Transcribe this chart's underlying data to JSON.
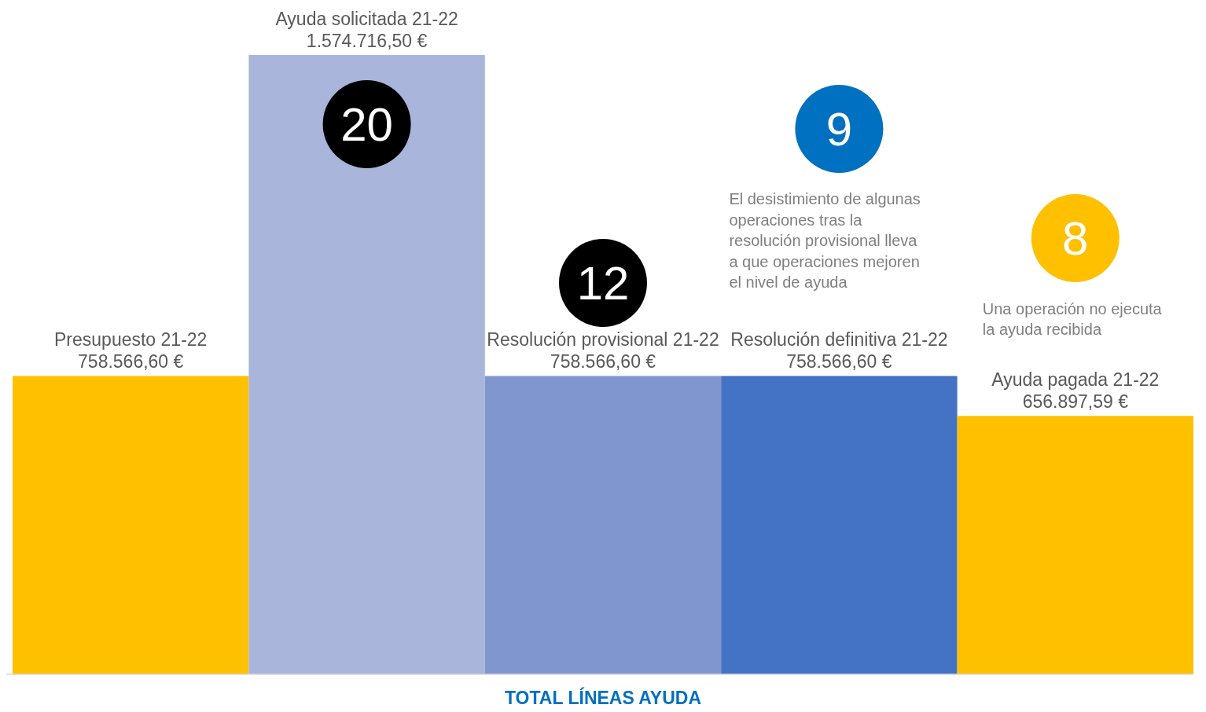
{
  "chart_data": {
    "type": "bar",
    "xlabel": "TOTAL LÍNEAS AYUDA",
    "categories": [
      "Presupuesto 21-22",
      "Ayuda solicitada 21-22",
      "Resolución provisional 21-22",
      "Resolución definitiva 21-22",
      "Ayuda pagada 21-22"
    ],
    "values": [
      758566.6,
      1574716.5,
      758566.6,
      758566.6,
      656897.59
    ],
    "value_labels": [
      "758.566,60 €",
      "1.574.716,50 €",
      "758.566,60 €",
      "758.566,60 €",
      "656.897,59 €"
    ],
    "colors": [
      "#ffc000",
      "#a9b5db",
      "#8096cf",
      "#4472c4",
      "#ffc000"
    ],
    "annotations": [
      "20",
      "12",
      "9",
      "El desistimiento de algunas\noperaciones tras la\nresolución provisional lleva\na que operaciones mejoren\nel nivel de ayuda",
      "8",
      "Una operación no ejecuta\nla ayuda recibida"
    ]
  }
}
